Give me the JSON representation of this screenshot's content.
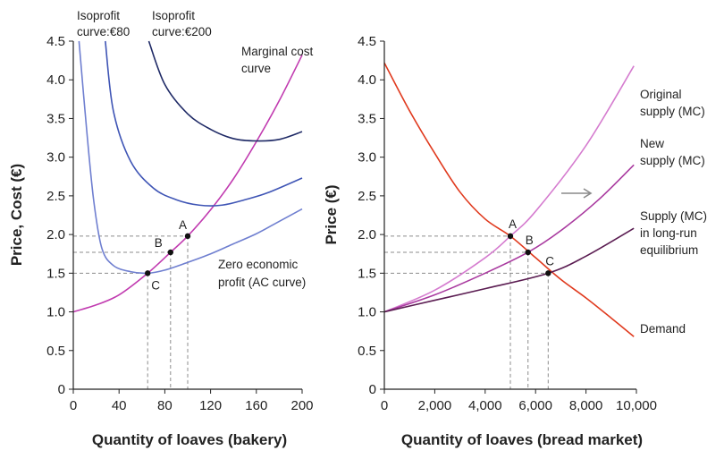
{
  "chart_data": [
    {
      "type": "line",
      "xlabel": "Quantity of loaves (bakery)",
      "ylabel": "Price, Cost (€)",
      "xlim": [
        0,
        200
      ],
      "ylim": [
        0,
        4.5
      ],
      "x_ticks": [
        "0",
        "40",
        "80",
        "120",
        "160",
        "200"
      ],
      "y_ticks": [
        "0",
        "0.5",
        "1.0",
        "1.5",
        "2.0",
        "2.5",
        "3.0",
        "3.5",
        "4.0",
        "4.5"
      ],
      "series": [
        {
          "name": "Marginal cost curve",
          "color": "#c13bb0",
          "x": [
            0,
            20,
            40,
            65,
            85,
            100,
            120,
            140,
            160,
            180,
            200
          ],
          "y": [
            1.0,
            1.09,
            1.22,
            1.5,
            1.77,
            1.98,
            2.32,
            2.72,
            3.2,
            3.73,
            4.32
          ]
        },
        {
          "name": "Zero economic profit (AC curve)",
          "color": "#6f7fd0",
          "x": [
            5,
            12,
            18,
            25,
            35,
            50,
            65,
            80,
            100,
            120,
            140,
            160,
            180,
            200
          ],
          "y": [
            4.5,
            3.3,
            2.42,
            1.82,
            1.6,
            1.52,
            1.5,
            1.54,
            1.64,
            1.75,
            1.88,
            2.01,
            2.17,
            2.33
          ]
        },
        {
          "name": "Isoprofit curve: €80",
          "color": "#3f55b5",
          "x": [
            28,
            35,
            50,
            70,
            90,
            110,
            130,
            150,
            170,
            200
          ],
          "y": [
            4.5,
            3.6,
            2.95,
            2.6,
            2.45,
            2.38,
            2.38,
            2.45,
            2.54,
            2.73
          ]
        },
        {
          "name": "Isoprofit curve: €200",
          "color": "#1f2a66",
          "x": [
            66,
            80,
            100,
            120,
            140,
            160,
            180,
            200
          ],
          "y": [
            4.5,
            3.94,
            3.56,
            3.36,
            3.24,
            3.21,
            3.23,
            3.33
          ]
        }
      ],
      "points": [
        {
          "label": "A",
          "x": 100,
          "y": 1.98
        },
        {
          "label": "B",
          "x": 85,
          "y": 1.77
        },
        {
          "label": "C",
          "x": 65,
          "y": 1.5
        }
      ],
      "annotations": {
        "iso80_line1": "Isoprofit",
        "iso80_line2": "curve:€80",
        "iso200_line1": "Isoprofit",
        "iso200_line2": "curve:€200",
        "mc_line1": "Marginal cost",
        "mc_line2": "curve",
        "ac_line1": "Zero economic",
        "ac_line2": "profit (AC curve)"
      }
    },
    {
      "type": "line",
      "xlabel": "Quantity of loaves (bread market)",
      "ylabel": "Price (€)",
      "xlim": [
        0,
        10000
      ],
      "ylim": [
        0,
        4.5
      ],
      "x_ticks": [
        "0",
        "2,000",
        "4,000",
        "6,000",
        "8,000",
        "10,000"
      ],
      "y_ticks": [
        "0",
        "0.5",
        "1.0",
        "1.5",
        "2.0",
        "2.5",
        "3.0",
        "3.5",
        "4.0",
        "4.5"
      ],
      "series": [
        {
          "name": "Demand",
          "color": "#e03a1e",
          "x": [
            0,
            1000,
            2000,
            3000,
            4000,
            5000,
            6000,
            7000,
            8000,
            9000,
            9900
          ],
          "y": [
            4.22,
            3.6,
            3.05,
            2.55,
            2.2,
            1.98,
            1.7,
            1.42,
            1.18,
            0.92,
            0.68
          ]
        },
        {
          "name": "Original supply (MC)",
          "color": "#d57ccf",
          "x": [
            0,
            2000,
            4000,
            5000,
            6000,
            8000,
            9900
          ],
          "y": [
            1.0,
            1.28,
            1.7,
            1.98,
            2.3,
            3.15,
            4.18
          ]
        },
        {
          "name": "New supply (MC)",
          "color": "#a93a9f",
          "x": [
            0,
            2000,
            4000,
            5700,
            7000,
            8500,
            9900
          ],
          "y": [
            1.0,
            1.22,
            1.5,
            1.77,
            2.05,
            2.45,
            2.9
          ]
        },
        {
          "name": "Supply (MC) in long-run equilibrium",
          "color": "#5b1d52",
          "x": [
            0,
            2000,
            4000,
            6500,
            8000,
            9900
          ],
          "y": [
            1.0,
            1.15,
            1.3,
            1.5,
            1.72,
            2.08
          ]
        }
      ],
      "points": [
        {
          "label": "A",
          "x": 5000,
          "y": 1.98
        },
        {
          "label": "B",
          "x": 5700,
          "y": 1.77
        },
        {
          "label": "C",
          "x": 6500,
          "y": 1.5
        }
      ],
      "annotations": {
        "orig_line1": "Original",
        "orig_line2": "supply (MC)",
        "new_line1": "New",
        "new_line2": "supply (MC)",
        "lr_line1": "Supply (MC)",
        "lr_line2": "in long-run",
        "lr_line3": "equilibrium",
        "demand_label": "Demand"
      }
    }
  ]
}
